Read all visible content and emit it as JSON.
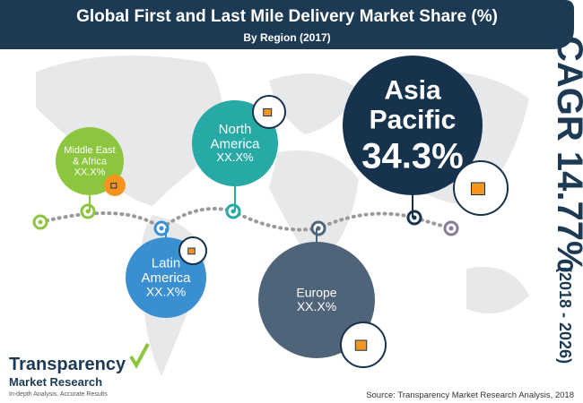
{
  "header": {
    "title": "Global First and Last Mile Delivery Market Share (%)",
    "subtitle": "By Region (2017)"
  },
  "regions": [
    {
      "name_lines": [
        "Middle East",
        "& Africa"
      ],
      "value": "XX.X%"
    },
    {
      "name_lines": [
        "North",
        "America"
      ],
      "value": "XX.X%"
    },
    {
      "name_lines": [
        "Asia",
        "Pacific"
      ],
      "value": "34.3%"
    },
    {
      "name_lines": [
        "Latin",
        "America"
      ],
      "value": "XX.X%"
    },
    {
      "name_lines": [
        "Europe"
      ],
      "value": "XX.X%"
    }
  ],
  "cagr": {
    "label": "CAGR 14.77%",
    "period": "(2018 - 2026)"
  },
  "logo": {
    "line1": "Transparency",
    "line2": "Market Research",
    "tagline": "In-depth Analysis. Accurate Results"
  },
  "source": "Source: Transparency Market Research Analysis, 2018"
}
